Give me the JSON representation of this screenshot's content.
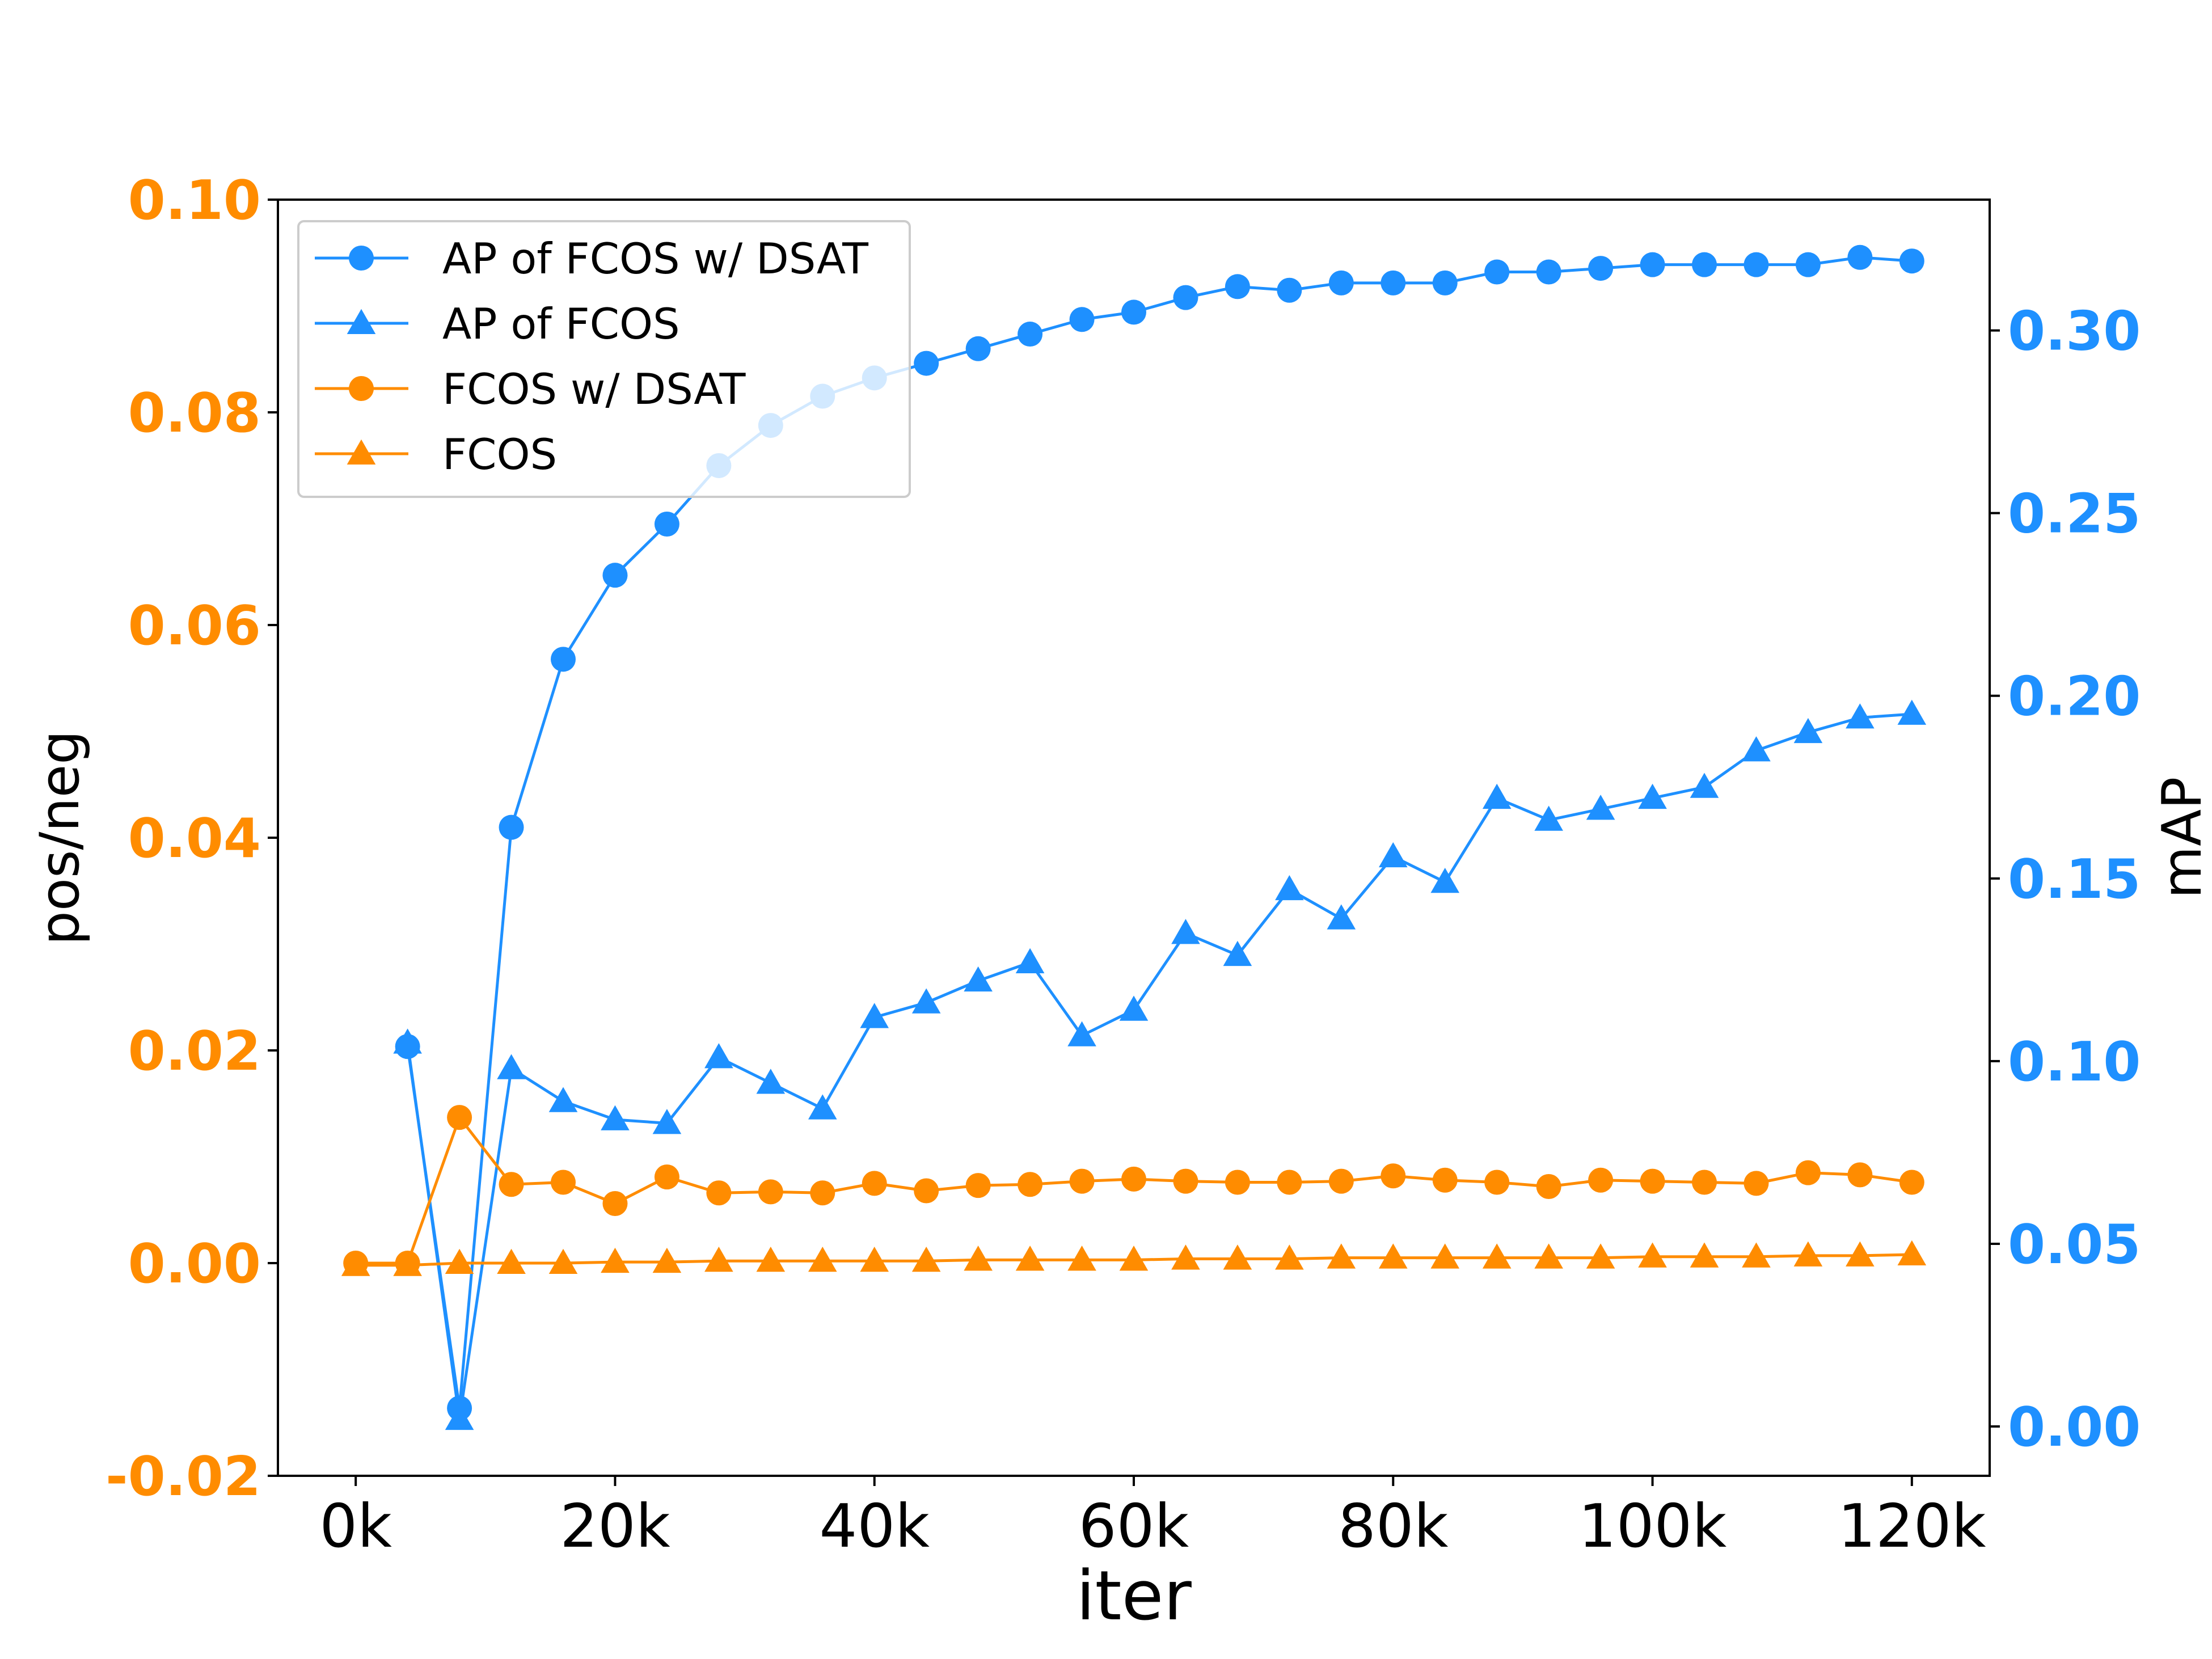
{
  "chart_data": {
    "type": "line",
    "xlabel": "iter",
    "ylabel_left": "pos/neg",
    "ylabel_right": "mAP",
    "xlim": [
      -6000,
      126000
    ],
    "ylim_left": [
      -0.02,
      0.1
    ],
    "ylim_right": [
      -0.0135,
      0.3358
    ],
    "x_ticks": [
      0,
      20000,
      40000,
      60000,
      80000,
      100000,
      120000
    ],
    "x_tick_labels": [
      "0k",
      "20k",
      "40k",
      "60k",
      "80k",
      "100k",
      "120k"
    ],
    "y_left_ticks": [
      -0.02,
      0.0,
      0.02,
      0.04,
      0.06,
      0.08,
      0.1
    ],
    "y_left_tick_labels": [
      "-0.02",
      "0.00",
      "0.02",
      "0.04",
      "0.06",
      "0.08",
      "0.10"
    ],
    "y_right_ticks": [
      0.0,
      0.05,
      0.1,
      0.15,
      0.2,
      0.25,
      0.3
    ],
    "y_right_tick_labels": [
      "0.00",
      "0.05",
      "0.10",
      "0.15",
      "0.20",
      "0.25",
      "0.30"
    ],
    "legend_position": "top-left",
    "grid": false,
    "colors": {
      "left_axis": "#ff8c00",
      "right_axis": "#1e90ff"
    },
    "series": [
      {
        "name": "AP of FCOS w/ DSAT",
        "axis": "right",
        "marker": "circle",
        "color": "#1e90ff",
        "x": [
          4000,
          8000,
          12000,
          16000,
          20000,
          24000,
          28000,
          32000,
          36000,
          40000,
          44000,
          48000,
          52000,
          56000,
          60000,
          64000,
          68000,
          72000,
          76000,
          80000,
          84000,
          88000,
          92000,
          96000,
          100000,
          104000,
          108000,
          112000,
          116000,
          120000
        ],
        "values": [
          0.104,
          0.005,
          0.164,
          0.21,
          0.233,
          0.247,
          0.263,
          0.274,
          0.282,
          0.287,
          0.291,
          0.295,
          0.299,
          0.303,
          0.305,
          0.309,
          0.312,
          0.311,
          0.313,
          0.313,
          0.313,
          0.316,
          0.316,
          0.317,
          0.318,
          0.318,
          0.318,
          0.318,
          0.32,
          0.319
        ]
      },
      {
        "name": "AP of FCOS",
        "axis": "right",
        "marker": "triangle",
        "color": "#1e90ff",
        "x": [
          4000,
          8000,
          12000,
          16000,
          20000,
          24000,
          28000,
          32000,
          36000,
          40000,
          44000,
          48000,
          52000,
          56000,
          60000,
          64000,
          68000,
          72000,
          76000,
          80000,
          84000,
          88000,
          92000,
          96000,
          100000,
          104000,
          108000,
          112000,
          116000,
          120000
        ],
        "values": [
          0.105,
          0.002,
          0.098,
          0.089,
          0.084,
          0.083,
          0.101,
          0.094,
          0.087,
          0.112,
          0.116,
          0.122,
          0.127,
          0.107,
          0.114,
          0.135,
          0.129,
          0.147,
          0.139,
          0.156,
          0.149,
          0.172,
          0.166,
          0.169,
          0.172,
          0.175,
          0.185,
          0.19,
          0.194,
          0.195
        ]
      },
      {
        "name": "FCOS w/ DSAT",
        "axis": "left",
        "marker": "circle",
        "color": "#ff8c00",
        "x": [
          0,
          4000,
          8000,
          12000,
          16000,
          20000,
          24000,
          28000,
          32000,
          36000,
          40000,
          44000,
          48000,
          52000,
          56000,
          60000,
          64000,
          68000,
          72000,
          76000,
          80000,
          84000,
          88000,
          92000,
          96000,
          100000,
          104000,
          108000,
          112000,
          116000,
          120000
        ],
        "values": [
          0.0,
          0.0,
          0.0137,
          0.0074,
          0.0076,
          0.0056,
          0.0081,
          0.0066,
          0.0067,
          0.0066,
          0.0075,
          0.0068,
          0.0073,
          0.0074,
          0.0077,
          0.0079,
          0.0077,
          0.0076,
          0.0076,
          0.0077,
          0.0082,
          0.0078,
          0.0076,
          0.0072,
          0.0078,
          0.0077,
          0.0076,
          0.0075,
          0.0085,
          0.0083,
          0.0076
        ]
      },
      {
        "name": "FCOS",
        "axis": "left",
        "marker": "triangle",
        "color": "#ff8c00",
        "x": [
          0,
          4000,
          8000,
          12000,
          16000,
          20000,
          24000,
          28000,
          32000,
          36000,
          40000,
          44000,
          48000,
          52000,
          56000,
          60000,
          64000,
          68000,
          72000,
          76000,
          80000,
          84000,
          88000,
          92000,
          96000,
          100000,
          104000,
          108000,
          112000,
          116000,
          120000
        ],
        "values": [
          -0.0002,
          -0.0002,
          0.0,
          0.0,
          0.0,
          0.0001,
          0.0001,
          0.0002,
          0.0002,
          0.0002,
          0.0002,
          0.0002,
          0.0003,
          0.0003,
          0.0003,
          0.0003,
          0.0004,
          0.0004,
          0.0004,
          0.0005,
          0.0005,
          0.0005,
          0.0005,
          0.0005,
          0.0005,
          0.0006,
          0.0006,
          0.0006,
          0.0007,
          0.0007,
          0.0008
        ]
      }
    ]
  }
}
